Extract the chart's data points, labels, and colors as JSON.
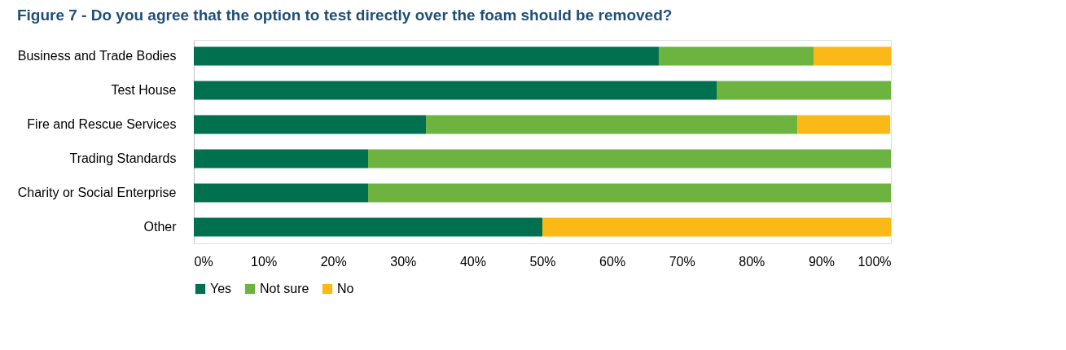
{
  "chart_data": {
    "type": "bar",
    "orientation": "horizontal",
    "stacked": true,
    "title": "Figure 7 - Do you agree that the option to test directly over the foam should be removed?",
    "categories": [
      "Business and Trade Bodies",
      "Test House",
      "Fire and Rescue Services",
      "Trading Standards",
      "Charity or Social Enterprise",
      "Other"
    ],
    "series": [
      {
        "name": "Yes",
        "color": "#00704f",
        "values": [
          66.7,
          75,
          33.3,
          25,
          25,
          50
        ]
      },
      {
        "name": "Not sure",
        "color": "#6db33f",
        "values": [
          22.2,
          25,
          53.3,
          75,
          75,
          0
        ]
      },
      {
        "name": "No",
        "color": "#fbb917",
        "values": [
          11.1,
          0,
          13.3,
          0,
          0,
          50
        ]
      }
    ],
    "xlim": [
      0,
      100
    ],
    "xticks": [
      {
        "value": 0,
        "label": "0%"
      },
      {
        "value": 10,
        "label": "10%"
      },
      {
        "value": 20,
        "label": "20%"
      },
      {
        "value": 30,
        "label": "30%"
      },
      {
        "value": 40,
        "label": "40%"
      },
      {
        "value": 50,
        "label": "50%"
      },
      {
        "value": 60,
        "label": "60%"
      },
      {
        "value": 70,
        "label": "70%"
      },
      {
        "value": 80,
        "label": "80%"
      },
      {
        "value": 90,
        "label": "90%"
      },
      {
        "value": 100,
        "label": "100%"
      }
    ],
    "grid": false,
    "legend": "bottom"
  }
}
